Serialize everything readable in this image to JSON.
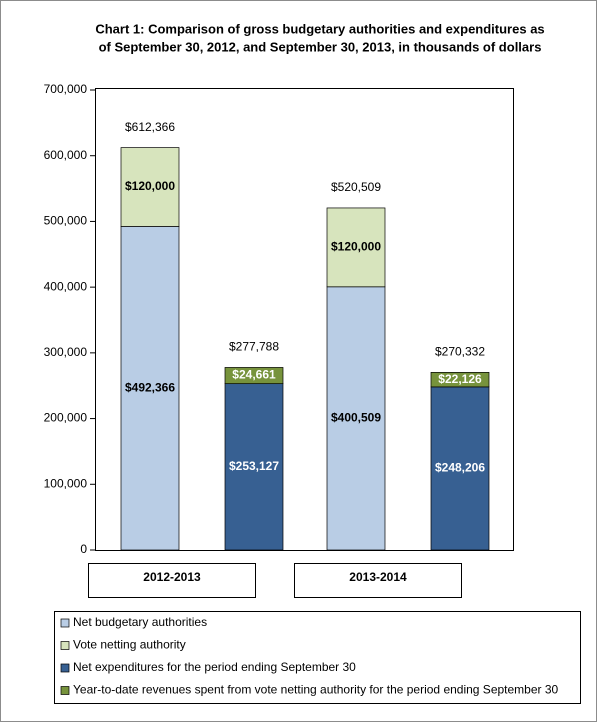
{
  "chart_data": {
    "type": "stacked-bar",
    "title": [
      "Chart 1: Comparison  of gross budgetary authorities  and expenditures as",
      "of September 30, 2012,  and September 30, 2013,  in thousands of dollars"
    ],
    "categories": [
      "2012-2013",
      "2013-2014"
    ],
    "series": [
      {
        "name": "Net budgetary authorities",
        "color": "#b9cde5",
        "label_color": "#000000",
        "stack": 0,
        "values": [
          492366,
          400509
        ],
        "value_labels": [
          "$492,366",
          "$400,509"
        ]
      },
      {
        "name": "Vote netting authority",
        "color": "#d7e4bd",
        "label_color": "#000000",
        "stack": 0,
        "values": [
          120000,
          120000
        ],
        "value_labels": [
          "$120,000",
          "$120,000"
        ]
      },
      {
        "name": "Net expenditures for the period ending September 30",
        "color": "#376092",
        "label_color": "#ffffff",
        "stack": 1,
        "values": [
          253127,
          248206
        ],
        "value_labels": [
          "$253,127",
          "$248,206"
        ]
      },
      {
        "name": "Year-to-date revenues spent from vote netting authority for the period ending September 30",
        "color": "#77933c",
        "label_color": "#ffffff",
        "stack": 1,
        "values": [
          24661,
          22126
        ],
        "value_labels": [
          "$24,661",
          "$22,126"
        ]
      }
    ],
    "stack_totals": [
      {
        "values": [
          612366,
          520509
        ],
        "value_labels": [
          "$612,366",
          "$520,509"
        ]
      },
      {
        "values": [
          277788,
          270332
        ],
        "value_labels": [
          "$277,788",
          "$270,332"
        ]
      }
    ],
    "ylim": [
      0,
      700000
    ],
    "yticks": [
      0,
      {
        "value": 100000,
        "label": "100,000"
      },
      {
        "value": 200000,
        "label": "200,000"
      },
      {
        "value": 300000,
        "label": "300,000"
      },
      {
        "value": 400000,
        "label": "400,000"
      },
      {
        "value": 500000,
        "label": "500,000"
      },
      {
        "value": 600000,
        "label": "600,000"
      },
      {
        "value": 700000,
        "label": "700,000"
      }
    ],
    "grid": false
  }
}
